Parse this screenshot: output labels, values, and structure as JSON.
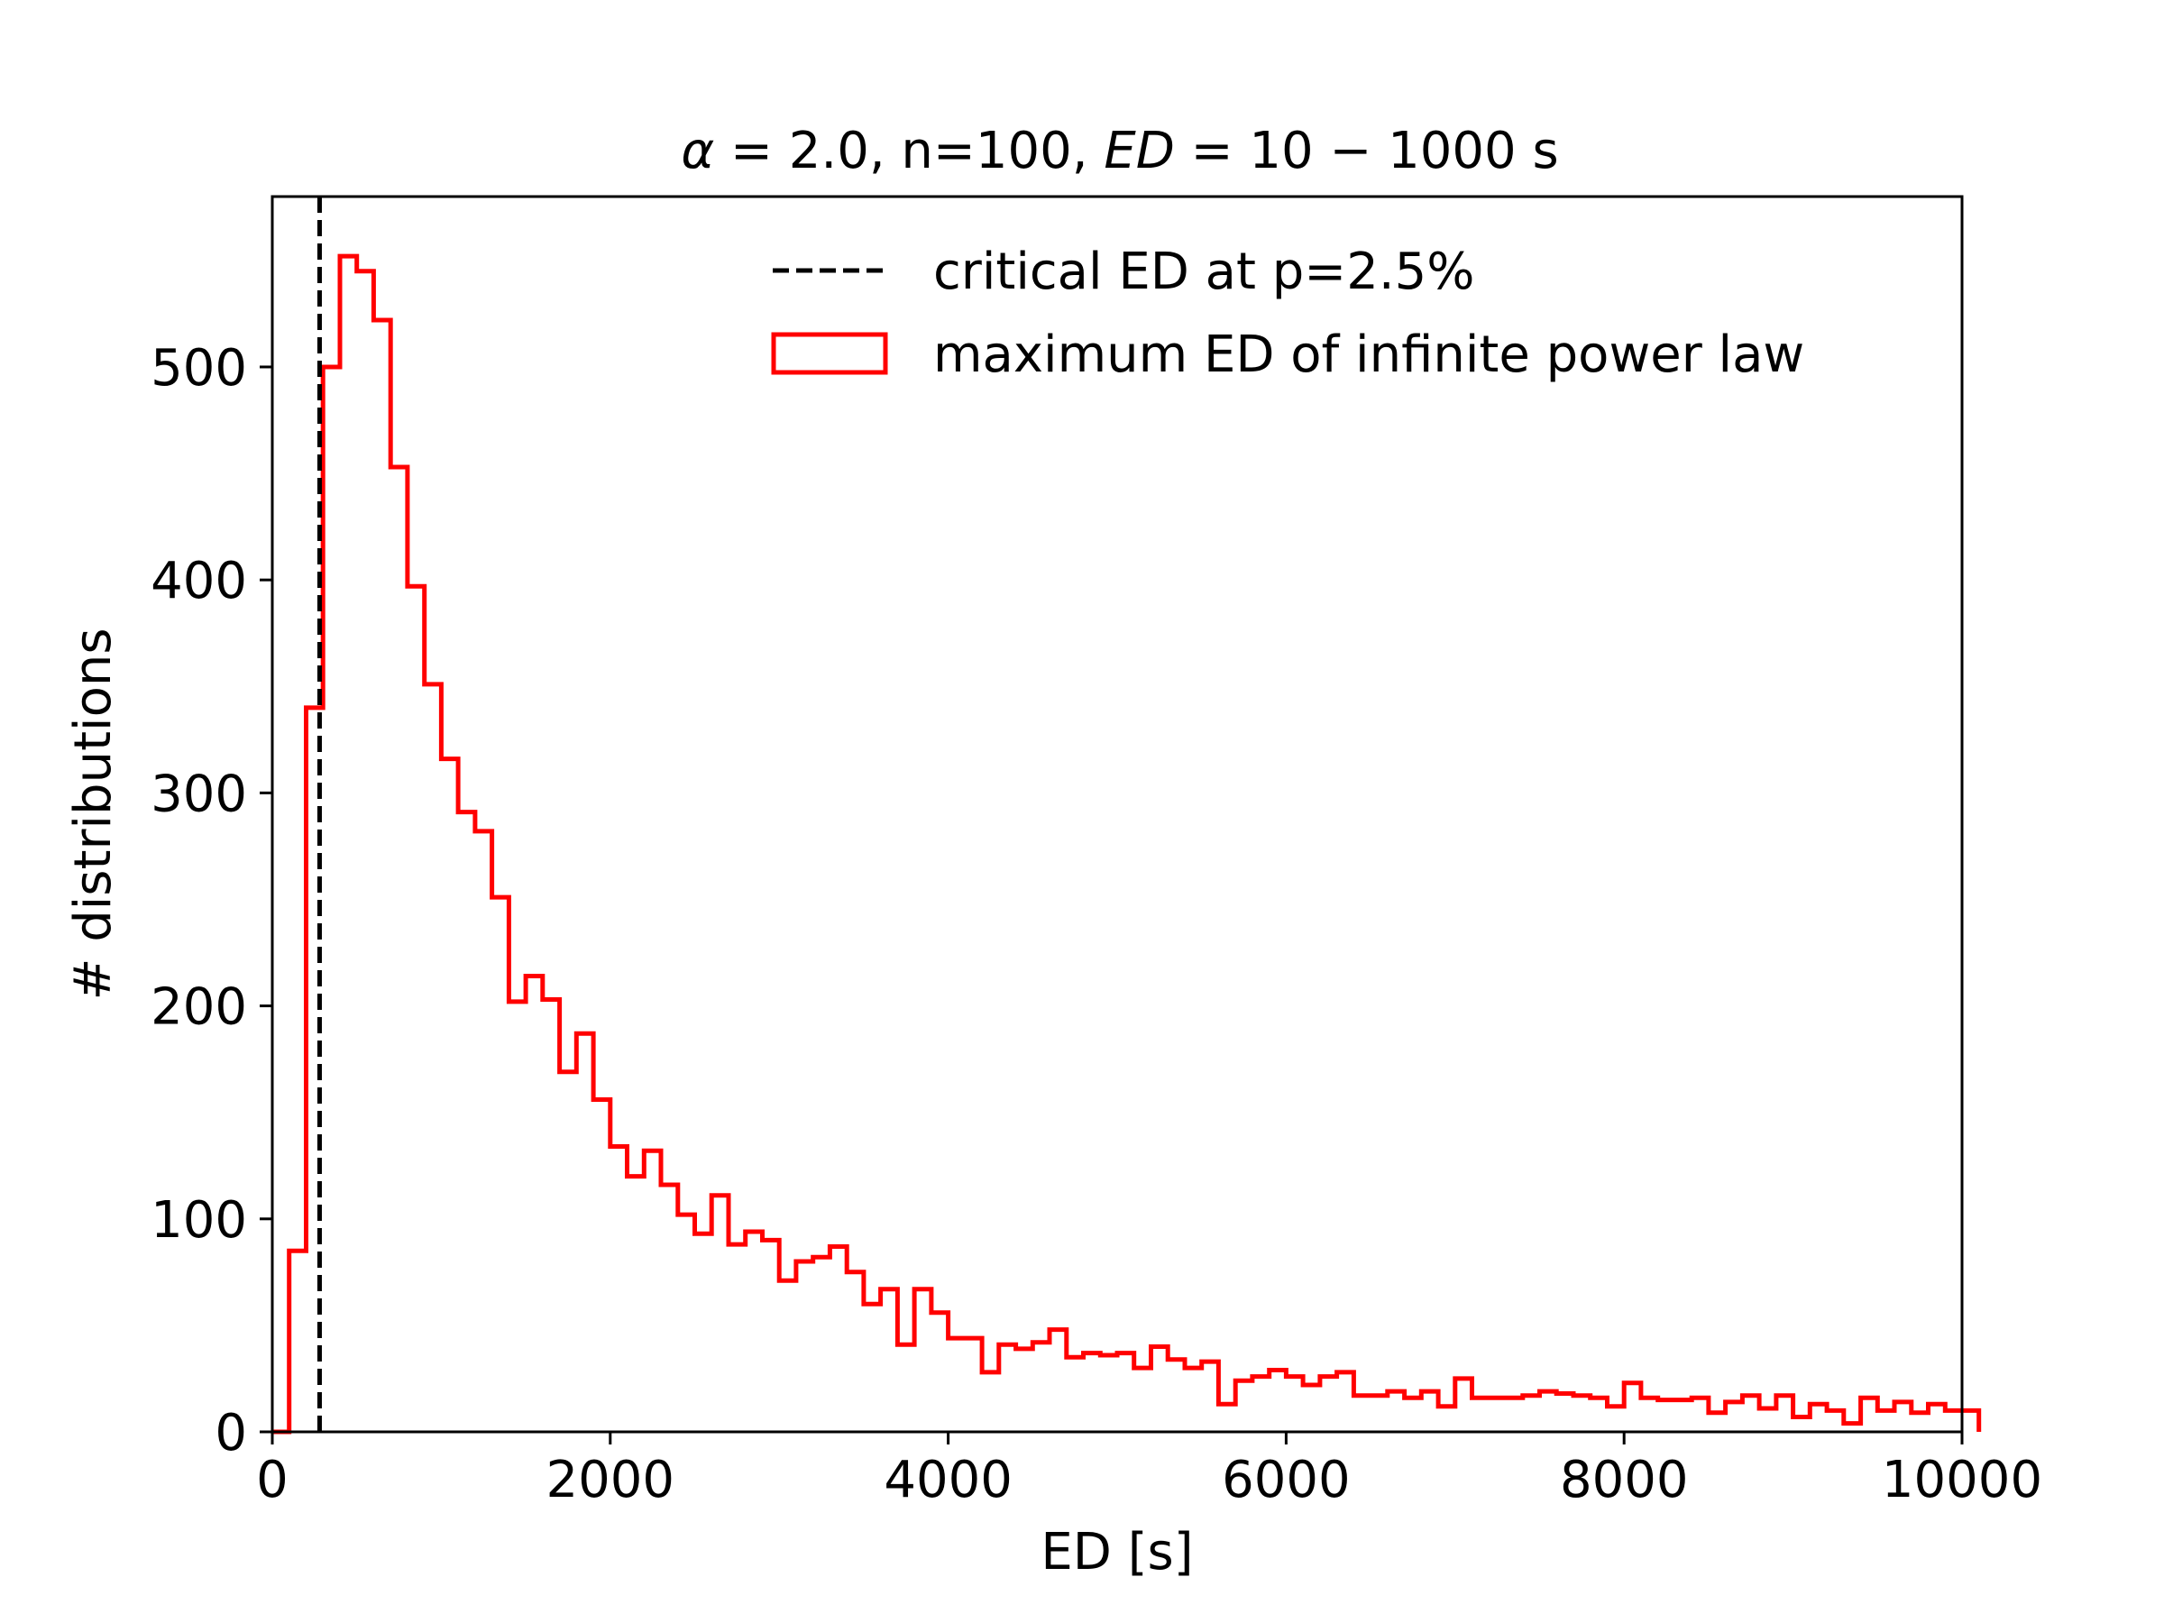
{
  "chart_data": {
    "type": "histogram",
    "title": {
      "alpha": "α",
      "alpha_eq": " = 2.0, n=100, ",
      "ed": "ED",
      "ed_eq": " = 10 − 1000 s"
    },
    "xlabel": "ED [s]",
    "ylabel": "# distributions",
    "xlim": [
      0,
      10000
    ],
    "ylim": [
      0,
      580
    ],
    "xticks": [
      0,
      2000,
      4000,
      6000,
      8000,
      10000
    ],
    "yticks": [
      0,
      100,
      200,
      300,
      400,
      500
    ],
    "grid": false,
    "legend_position": "top-right",
    "critical_line": {
      "label": "critical ED at p=2.5%",
      "x": 280,
      "color": "#000000",
      "style": "dashed"
    },
    "histogram": {
      "label": "maximum ED of infinite power law",
      "color": "#ff0000",
      "bin_width": 100,
      "bin_start": 0,
      "counts": [
        0,
        85,
        340,
        500,
        552,
        545,
        522,
        453,
        397,
        351,
        316,
        291,
        282,
        251,
        202,
        214,
        203,
        169,
        187,
        156,
        134,
        120,
        132,
        116,
        102,
        93,
        111,
        88,
        94,
        90,
        71,
        80,
        82,
        87,
        75,
        60,
        67,
        41,
        67,
        56,
        44,
        44,
        28,
        41,
        39,
        42,
        48,
        35,
        37,
        36,
        37,
        30,
        40,
        34,
        30,
        33,
        13,
        24,
        26,
        29,
        26,
        22,
        26,
        28,
        17,
        17,
        19,
        16,
        19,
        12,
        25,
        16,
        16,
        16,
        17,
        19,
        18,
        17,
        16,
        12,
        23,
        16,
        15,
        15,
        16,
        9,
        14,
        17,
        11,
        17,
        7,
        13,
        10,
        4,
        16,
        10,
        14,
        9,
        13,
        10,
        10
      ]
    }
  }
}
